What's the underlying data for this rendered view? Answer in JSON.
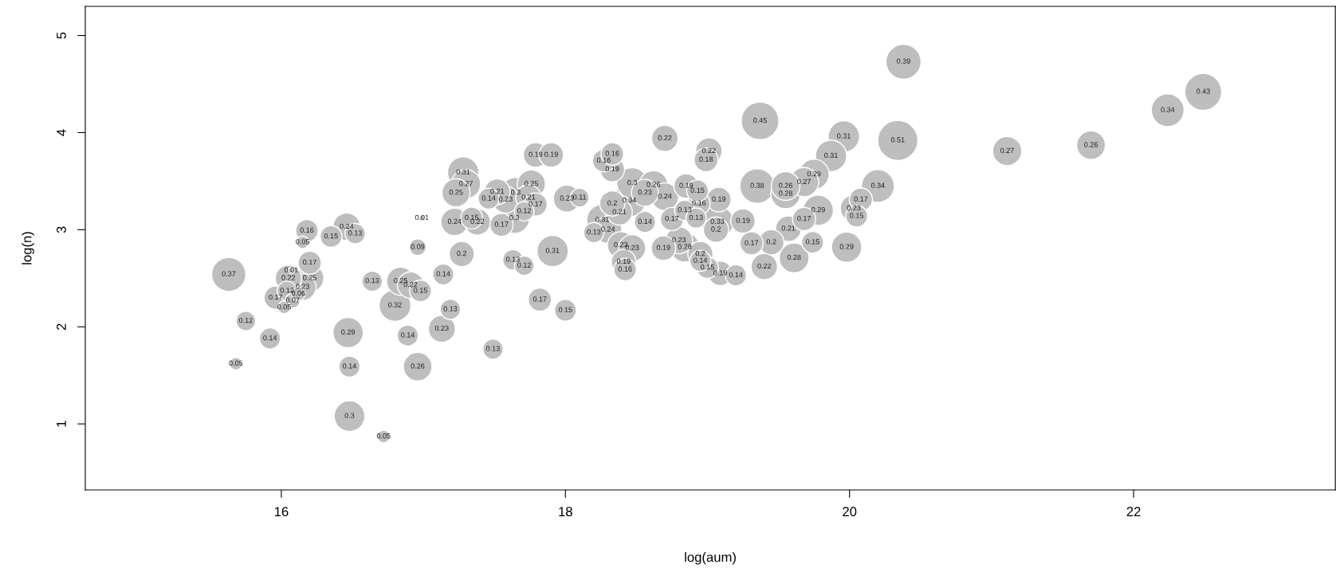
{
  "chart_data": {
    "type": "bubble",
    "xlabel": "log(aum)",
    "ylabel": "log(n)",
    "color": "#bebebe",
    "xlim": [
      14.62,
      23.42
    ],
    "ylim": [
      0.32,
      5.3
    ],
    "xticks": [
      16,
      18,
      20,
      22
    ],
    "yticks": [
      1,
      2,
      3,
      4,
      5
    ],
    "x": [
      15.63,
      15.75,
      15.92,
      15.68,
      16.18,
      16.15,
      16.35,
      16.46,
      16.52,
      16.2,
      16.07,
      16.05,
      16.15,
      16.2,
      16.04,
      16.12,
      15.96,
      16.08,
      16.02,
      16.99,
      16.96,
      17.14,
      16.64,
      16.84,
      16.91,
      16.98,
      16.8,
      16.47,
      16.89,
      17.13,
      16.48,
      16.96,
      16.48,
      16.72,
      17.19,
      17.28,
      17.3,
      17.23,
      17.46,
      17.52,
      17.58,
      17.65,
      17.76,
      17.74,
      17.79,
      17.71,
      17.64,
      17.55,
      17.22,
      17.34,
      17.38,
      17.27,
      17.79,
      17.9,
      18.01,
      18.1,
      17.63,
      17.71,
      17.91,
      17.82,
      18.0,
      17.49,
      18.7,
      18.27,
      18.33,
      18.33,
      18.2,
      18.38,
      18.26,
      18.3,
      18.33,
      18.45,
      18.39,
      18.47,
      18.41,
      18.42,
      18.56,
      18.75,
      18.69,
      19.37,
      19.01,
      18.99,
      18.47,
      18.56,
      18.62,
      18.7,
      18.85,
      18.93,
      18.94,
      19.08,
      18.84,
      18.92,
      19.07,
      19.06,
      19.25,
      19.35,
      19.55,
      19.55,
      19.68,
      19.57,
      19.68,
      19.31,
      19.45,
      19.61,
      19.4,
      18.8,
      18.84,
      18.95,
      18.95,
      19.0,
      19.09,
      19.2,
      19.96,
      19.87,
      20.34,
      21.11,
      19.75,
      20.2,
      20.08,
      20.03,
      20.05,
      19.78,
      19.74,
      19.98,
      21.7,
      22.24,
      22.49,
      20.38
    ],
    "values": [
      2.54,
      2.06,
      1.88,
      1.62,
      2.99,
      2.87,
      2.93,
      3.03,
      2.96,
      2.66,
      2.58,
      2.5,
      2.41,
      2.5,
      2.37,
      2.34,
      2.3,
      2.27,
      2.2,
      3.12,
      2.82,
      2.54,
      2.47,
      2.47,
      2.43,
      2.37,
      2.22,
      1.94,
      1.91,
      1.98,
      1.59,
      1.59,
      1.08,
      0.87,
      2.18,
      3.59,
      3.47,
      3.38,
      3.32,
      3.39,
      3.31,
      3.38,
      3.47,
      3.33,
      3.26,
      3.19,
      3.12,
      3.05,
      3.08,
      3.12,
      3.08,
      2.75,
      3.77,
      3.77,
      3.32,
      3.33,
      2.69,
      2.63,
      2.78,
      2.28,
      2.17,
      1.77,
      3.94,
      3.71,
      3.78,
      3.62,
      2.97,
      3.18,
      3.1,
      3.0,
      3.27,
      3.3,
      2.84,
      2.81,
      2.67,
      2.59,
      3.08,
      3.11,
      2.81,
      4.12,
      3.81,
      3.72,
      3.48,
      3.38,
      3.46,
      3.34,
      3.45,
      3.4,
      3.27,
      3.31,
      3.2,
      3.12,
      3.08,
      3.0,
      3.09,
      3.45,
      3.45,
      3.37,
      3.49,
      3.01,
      3.11,
      2.86,
      2.87,
      2.71,
      2.62,
      2.89,
      2.82,
      2.75,
      2.68,
      2.61,
      2.55,
      2.53,
      3.96,
      3.76,
      3.92,
      3.81,
      3.57,
      3.45,
      3.31,
      3.22,
      3.14,
      3.2,
      2.87,
      2.82,
      3.87,
      4.23,
      4.42,
      4.73
    ],
    "sizes": [
      0.725,
      0.235,
      0.275,
      0.098,
      0.314,
      0.098,
      0.294,
      0.471,
      0.255,
      0.333,
      0.02,
      0.431,
      0.451,
      0.49,
      0.235,
      0.118,
      0.333,
      0.137,
      0.098,
      0.02,
      0.176,
      0.275,
      0.255,
      0.49,
      0.431,
      0.294,
      0.627,
      0.569,
      0.275,
      0.451,
      0.275,
      0.51,
      0.588,
      0.098,
      0.255,
      0.608,
      0.529,
      0.49,
      0.275,
      0.412,
      0.451,
      0.588,
      0.49,
      0.412,
      0.333,
      0.235,
      0.588,
      0.333,
      0.471,
      0.294,
      0.431,
      0.392,
      0.373,
      0.373,
      0.451,
      0.216,
      0.255,
      0.235,
      0.608,
      0.333,
      0.294,
      0.255,
      0.431,
      0.314,
      0.314,
      0.373,
      0.255,
      0.412,
      0.608,
      0.471,
      0.392,
      0.667,
      0.451,
      0.451,
      0.373,
      0.314,
      0.275,
      0.333,
      0.373,
      0.882,
      0.431,
      0.353,
      0.588,
      0.451,
      0.51,
      0.471,
      0.373,
      0.294,
      0.314,
      0.373,
      0.255,
      0.255,
      0.647,
      0.392,
      0.373,
      0.745,
      0.51,
      0.549,
      0.529,
      0.412,
      0.333,
      0.333,
      0.392,
      0.549,
      0.431,
      0.451,
      0.549,
      0.392,
      0.275,
      0.294,
      0.373,
      0.275,
      0.608,
      0.608,
      1,
      0.529,
      0.569,
      0.667,
      0.333,
      0.451,
      0.294,
      0.569,
      0.294,
      0.569,
      0.51,
      0.667,
      0.843,
      0.765
    ],
    "annotations": [
      {
        "text": "0.37",
        "x": 15.63,
        "y": 2.54
      },
      {
        "text": "0.12",
        "x": 15.75,
        "y": 2.06
      },
      {
        "text": "0.14",
        "x": 15.92,
        "y": 1.88
      },
      {
        "text": "0.05",
        "x": 15.68,
        "y": 1.62
      },
      {
        "text": "0.16",
        "x": 16.18,
        "y": 2.99
      },
      {
        "text": "0.05",
        "x": 16.15,
        "y": 2.87
      },
      {
        "text": "0.15",
        "x": 16.35,
        "y": 2.93
      },
      {
        "text": "0.24",
        "x": 16.46,
        "y": 3.03
      },
      {
        "text": "0.13",
        "x": 16.52,
        "y": 2.96
      },
      {
        "text": "0.17",
        "x": 16.2,
        "y": 2.66
      },
      {
        "text": "0.01",
        "x": 16.07,
        "y": 2.58
      },
      {
        "text": "0.22",
        "x": 16.05,
        "y": 2.5
      },
      {
        "text": "0.23",
        "x": 16.15,
        "y": 2.41
      },
      {
        "text": "0.25",
        "x": 16.2,
        "y": 2.5
      },
      {
        "text": "0.12",
        "x": 16.04,
        "y": 2.37
      },
      {
        "text": "0.06",
        "x": 16.12,
        "y": 2.34
      },
      {
        "text": "0.17",
        "x": 15.96,
        "y": 2.3
      },
      {
        "text": "0.07",
        "x": 16.08,
        "y": 2.27
      },
      {
        "text": "0.05",
        "x": 16.02,
        "y": 2.2
      },
      {
        "text": "0.01",
        "x": 16.99,
        "y": 3.12
      },
      {
        "text": "0.09",
        "x": 16.96,
        "y": 2.82
      },
      {
        "text": "0.14",
        "x": 17.14,
        "y": 2.54
      },
      {
        "text": "0.13",
        "x": 16.64,
        "y": 2.47
      },
      {
        "text": "0.25",
        "x": 16.84,
        "y": 2.47
      },
      {
        "text": "0.22",
        "x": 16.91,
        "y": 2.43
      },
      {
        "text": "0.15",
        "x": 16.98,
        "y": 2.37
      },
      {
        "text": "0.32",
        "x": 16.8,
        "y": 2.22
      },
      {
        "text": "0.29",
        "x": 16.47,
        "y": 1.94
      },
      {
        "text": "0.14",
        "x": 16.89,
        "y": 1.91
      },
      {
        "text": "0.23",
        "x": 17.13,
        "y": 1.98
      },
      {
        "text": "0.14",
        "x": 16.48,
        "y": 1.59
      },
      {
        "text": "0.26",
        "x": 16.96,
        "y": 1.59
      },
      {
        "text": "0.3",
        "x": 16.48,
        "y": 1.08
      },
      {
        "text": "0.05",
        "x": 16.72,
        "y": 0.87
      },
      {
        "text": "0.13",
        "x": 17.19,
        "y": 2.18
      },
      {
        "text": "0.31",
        "x": 17.28,
        "y": 3.59
      },
      {
        "text": "0.27",
        "x": 17.3,
        "y": 3.47
      },
      {
        "text": "0.25",
        "x": 17.23,
        "y": 3.38
      },
      {
        "text": "0.14",
        "x": 17.46,
        "y": 3.32
      },
      {
        "text": "0.21",
        "x": 17.52,
        "y": 3.39
      },
      {
        "text": "0.23",
        "x": 17.58,
        "y": 3.31
      },
      {
        "text": "0.3",
        "x": 17.65,
        "y": 3.38
      },
      {
        "text": "0.25",
        "x": 17.76,
        "y": 3.47
      },
      {
        "text": "0.21",
        "x": 17.74,
        "y": 3.33
      },
      {
        "text": "0.17",
        "x": 17.79,
        "y": 3.26
      },
      {
        "text": "0.12",
        "x": 17.71,
        "y": 3.19
      },
      {
        "text": "0.3",
        "x": 17.64,
        "y": 3.12
      },
      {
        "text": "0.17",
        "x": 17.55,
        "y": 3.05
      },
      {
        "text": "0.24",
        "x": 17.22,
        "y": 3.08
      },
      {
        "text": "0.15",
        "x": 17.34,
        "y": 3.12
      },
      {
        "text": "0.22",
        "x": 17.38,
        "y": 3.08
      },
      {
        "text": "0.2",
        "x": 17.27,
        "y": 2.75
      },
      {
        "text": "0.19",
        "x": 17.79,
        "y": 3.77
      },
      {
        "text": "0.19",
        "x": 17.9,
        "y": 3.77
      },
      {
        "text": "0.23",
        "x": 18.01,
        "y": 3.32
      },
      {
        "text": "0.11",
        "x": 18.1,
        "y": 3.33
      },
      {
        "text": "0.13",
        "x": 17.63,
        "y": 2.69
      },
      {
        "text": "0.12",
        "x": 17.71,
        "y": 2.63
      },
      {
        "text": "0.31",
        "x": 17.91,
        "y": 2.78
      },
      {
        "text": "0.17",
        "x": 17.82,
        "y": 2.28
      },
      {
        "text": "0.15",
        "x": 18.0,
        "y": 2.17
      },
      {
        "text": "0.13",
        "x": 17.49,
        "y": 1.77
      },
      {
        "text": "0.22",
        "x": 18.7,
        "y": 3.94
      },
      {
        "text": "0.16",
        "x": 18.27,
        "y": 3.71
      },
      {
        "text": "0.16",
        "x": 18.33,
        "y": 3.78
      },
      {
        "text": "0.19",
        "x": 18.33,
        "y": 3.62
      },
      {
        "text": "0.13",
        "x": 18.2,
        "y": 2.97
      },
      {
        "text": "0.21",
        "x": 18.38,
        "y": 3.18
      },
      {
        "text": "0.31",
        "x": 18.26,
        "y": 3.1
      },
      {
        "text": "0.24",
        "x": 18.3,
        "y": 3.0
      },
      {
        "text": "0.2",
        "x": 18.33,
        "y": 3.27
      },
      {
        "text": "0.34",
        "x": 18.45,
        "y": 3.3
      },
      {
        "text": "0.23",
        "x": 18.39,
        "y": 2.84
      },
      {
        "text": "0.23",
        "x": 18.47,
        "y": 2.81
      },
      {
        "text": "0.19",
        "x": 18.41,
        "y": 2.67
      },
      {
        "text": "0.16",
        "x": 18.42,
        "y": 2.59
      },
      {
        "text": "0.14",
        "x": 18.56,
        "y": 3.08
      },
      {
        "text": "0.17",
        "x": 18.75,
        "y": 3.11
      },
      {
        "text": "0.19",
        "x": 18.69,
        "y": 2.81
      },
      {
        "text": "0.45",
        "x": 19.37,
        "y": 4.12
      },
      {
        "text": "0.22",
        "x": 19.01,
        "y": 3.81
      },
      {
        "text": "0.18",
        "x": 18.99,
        "y": 3.72
      },
      {
        "text": "0.3",
        "x": 18.47,
        "y": 3.48
      },
      {
        "text": "0.23",
        "x": 18.56,
        "y": 3.38
      },
      {
        "text": "0.26",
        "x": 18.62,
        "y": 3.46
      },
      {
        "text": "0.24",
        "x": 18.7,
        "y": 3.34
      },
      {
        "text": "0.19",
        "x": 18.85,
        "y": 3.45
      },
      {
        "text": "0.15",
        "x": 18.93,
        "y": 3.4
      },
      {
        "text": "0.16",
        "x": 18.94,
        "y": 3.27
      },
      {
        "text": "0.19",
        "x": 19.08,
        "y": 3.31
      },
      {
        "text": "0.13",
        "x": 18.84,
        "y": 3.2
      },
      {
        "text": "0.13",
        "x": 18.92,
        "y": 3.12
      },
      {
        "text": "0.33",
        "x": 19.07,
        "y": 3.08
      },
      {
        "text": "0.2",
        "x": 19.06,
        "y": 3.0
      },
      {
        "text": "0.19",
        "x": 19.25,
        "y": 3.09
      },
      {
        "text": "0.38",
        "x": 19.35,
        "y": 3.45
      },
      {
        "text": "0.26",
        "x": 19.55,
        "y": 3.45
      },
      {
        "text": "0.28",
        "x": 19.55,
        "y": 3.37
      },
      {
        "text": "0.27",
        "x": 19.68,
        "y": 3.49
      },
      {
        "text": "0.21",
        "x": 19.57,
        "y": 3.01
      },
      {
        "text": "0.17",
        "x": 19.68,
        "y": 3.11
      },
      {
        "text": "0.17",
        "x": 19.31,
        "y": 2.86
      },
      {
        "text": "0.2",
        "x": 19.45,
        "y": 2.87
      },
      {
        "text": "0.28",
        "x": 19.61,
        "y": 2.71
      },
      {
        "text": "0.22",
        "x": 19.4,
        "y": 2.62
      },
      {
        "text": "0.23",
        "x": 18.8,
        "y": 2.89
      },
      {
        "text": "0.28",
        "x": 18.84,
        "y": 2.82
      },
      {
        "text": "0.2",
        "x": 18.95,
        "y": 2.75
      },
      {
        "text": "0.14",
        "x": 18.95,
        "y": 2.68
      },
      {
        "text": "0.15",
        "x": 19.0,
        "y": 2.61
      },
      {
        "text": "0.19",
        "x": 19.09,
        "y": 2.55
      },
      {
        "text": "0.14",
        "x": 19.2,
        "y": 2.53
      },
      {
        "text": "0.31",
        "x": 19.96,
        "y": 3.96
      },
      {
        "text": "0.31",
        "x": 19.87,
        "y": 3.76
      },
      {
        "text": "0.51",
        "x": 20.34,
        "y": 3.92
      },
      {
        "text": "0.27",
        "x": 21.11,
        "y": 3.81
      },
      {
        "text": "0.29",
        "x": 19.75,
        "y": 3.57
      },
      {
        "text": "0.34",
        "x": 20.2,
        "y": 3.45
      },
      {
        "text": "0.17",
        "x": 20.08,
        "y": 3.31
      },
      {
        "text": "0.23",
        "x": 20.03,
        "y": 3.22
      },
      {
        "text": "0.15",
        "x": 20.05,
        "y": 3.14
      },
      {
        "text": "0.29",
        "x": 19.78,
        "y": 3.2
      },
      {
        "text": "0.15",
        "x": 19.74,
        "y": 2.87
      },
      {
        "text": "0.29",
        "x": 19.98,
        "y": 2.82
      },
      {
        "text": "0.26",
        "x": 21.7,
        "y": 3.87
      },
      {
        "text": "0.34",
        "x": 22.24,
        "y": 4.23
      },
      {
        "text": "0.43",
        "x": 22.49,
        "y": 4.42
      },
      {
        "text": "0.39",
        "x": 20.38,
        "y": 4.73
      }
    ]
  }
}
